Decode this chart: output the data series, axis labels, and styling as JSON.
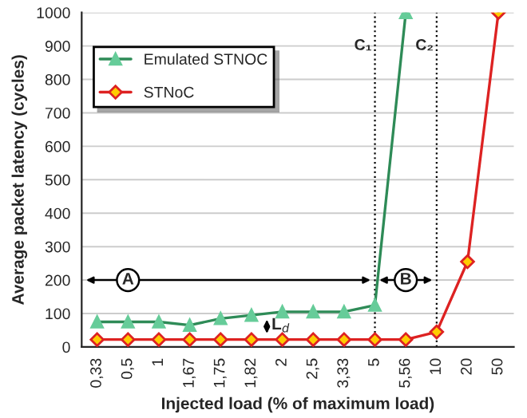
{
  "chart_data": {
    "type": "line",
    "xlabel": "Injected load (% of maximum load)",
    "ylabel": "Average packet latency (cycles)",
    "categories": [
      "0,33",
      "0,5",
      "1",
      "1,67",
      "1,75",
      "1,82",
      "2",
      "2,5",
      "3,33",
      "5",
      "5,56",
      "10",
      "20",
      "50"
    ],
    "series": [
      {
        "name": "Emulated STNOC",
        "color": "#2e8b57",
        "marker": "triangle",
        "values": [
          75,
          75,
          75,
          65,
          85,
          95,
          105,
          105,
          105,
          125,
          1000,
          null,
          null,
          null
        ]
      },
      {
        "name": "STNoC",
        "color": "#dd2222",
        "marker": "diamond",
        "values": [
          22,
          22,
          22,
          22,
          22,
          22,
          22,
          22,
          22,
          22,
          22,
          45,
          255,
          1000
        ]
      }
    ],
    "ylim": [
      0,
      1000
    ],
    "yticks": [
      0,
      100,
      200,
      300,
      400,
      500,
      600,
      700,
      800,
      900,
      1000
    ],
    "grid": "y",
    "legend": "top left",
    "ref_lines": [
      {
        "axis": "x",
        "value": "5",
        "label": "C₁",
        "line_style": "dotted"
      },
      {
        "axis": "x",
        "value": "10",
        "label": "C₂",
        "line_style": "dotted"
      }
    ],
    "annotations": [
      {
        "text": "A",
        "x": "0,5",
        "y": 200
      },
      {
        "text": "B",
        "x": "5,56",
        "y": 200
      },
      {
        "text": "L$_{d}$",
        "x": "2",
        "y": 65
      }
    ]
  }
}
